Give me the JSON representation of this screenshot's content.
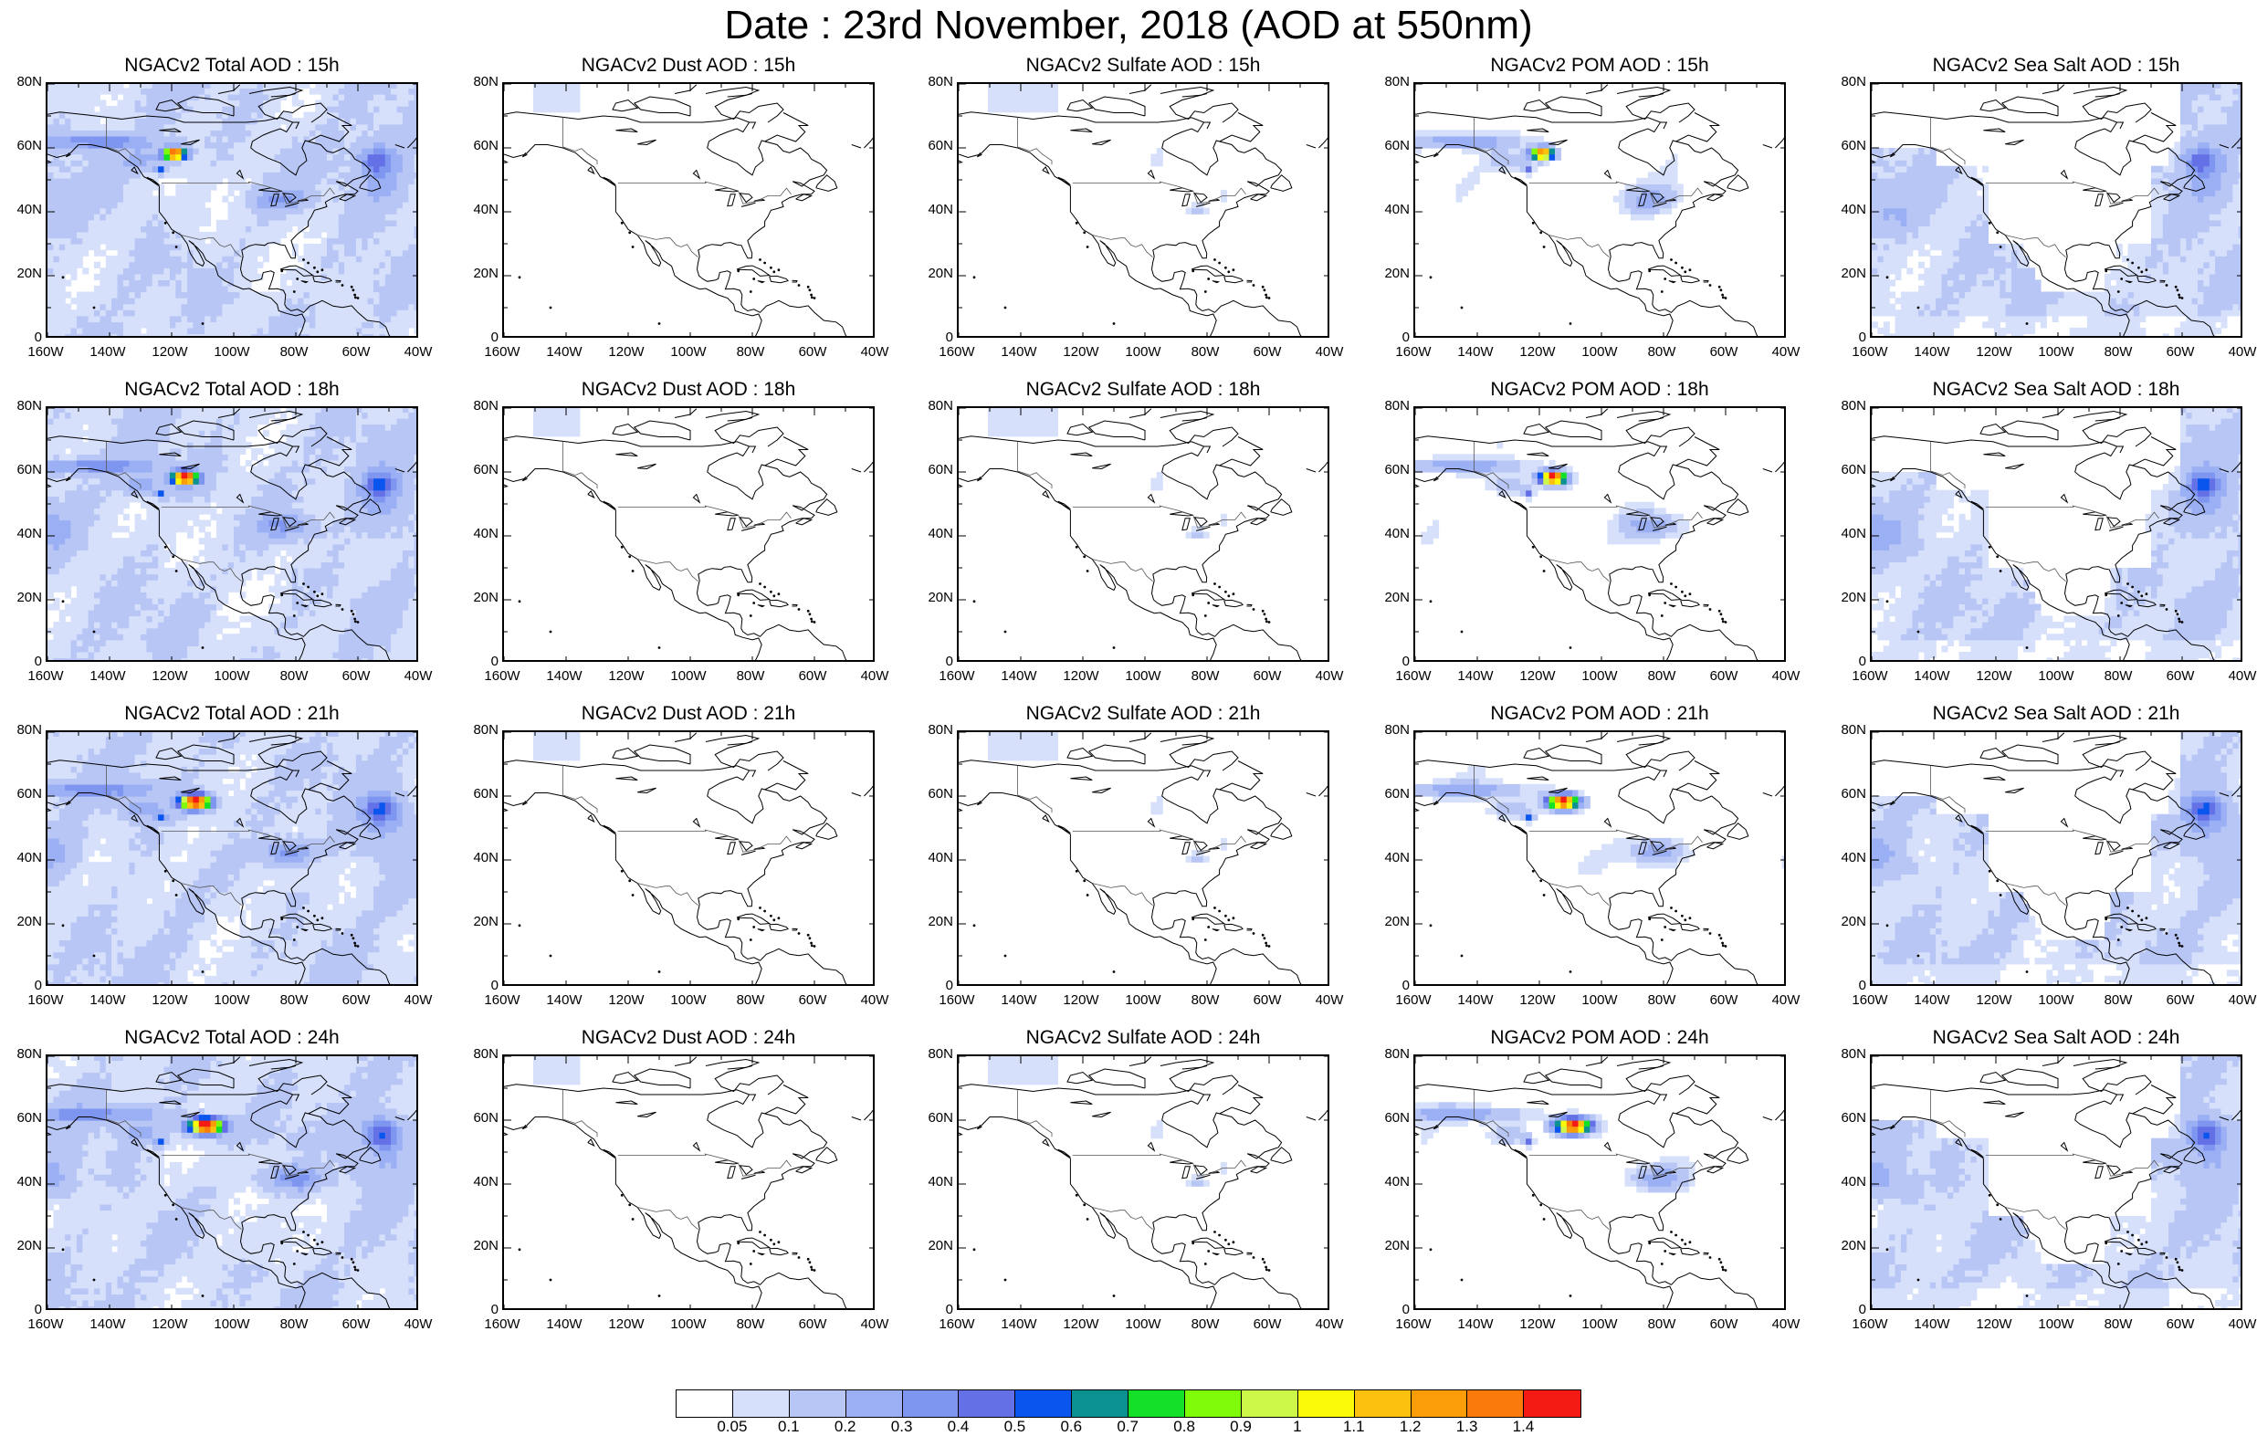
{
  "figure": {
    "title": "Date : 23rd November, 2018 (AOD at 550nm)"
  },
  "axes": {
    "lat_ticks": [
      "80N",
      "60N",
      "40N",
      "20N",
      "0"
    ],
    "lon_ticks": [
      "160W",
      "140W",
      "120W",
      "100W",
      "80W",
      "60W",
      "40W"
    ],
    "lat_range": [
      0,
      80
    ],
    "lon_range": [
      -160,
      -40
    ]
  },
  "panels": [
    [
      {
        "title": "NGACv2 Total AOD : 15h",
        "species": "total",
        "hour": 15
      },
      {
        "title": "NGACv2 Dust AOD : 15h",
        "species": "dust",
        "hour": 15
      },
      {
        "title": "NGACv2 Sulfate AOD : 15h",
        "species": "sulfate",
        "hour": 15
      },
      {
        "title": "NGACv2 POM AOD : 15h",
        "species": "pom",
        "hour": 15
      },
      {
        "title": "NGACv2 Sea Salt AOD : 15h",
        "species": "seasalt",
        "hour": 15
      }
    ],
    [
      {
        "title": "NGACv2 Total AOD : 18h",
        "species": "total",
        "hour": 18
      },
      {
        "title": "NGACv2 Dust AOD : 18h",
        "species": "dust",
        "hour": 18
      },
      {
        "title": "NGACv2 Sulfate AOD : 18h",
        "species": "sulfate",
        "hour": 18
      },
      {
        "title": "NGACv2 POM AOD : 18h",
        "species": "pom",
        "hour": 18
      },
      {
        "title": "NGACv2 Sea Salt AOD : 18h",
        "species": "seasalt",
        "hour": 18
      }
    ],
    [
      {
        "title": "NGACv2 Total AOD : 21h",
        "species": "total",
        "hour": 21
      },
      {
        "title": "NGACv2 Dust AOD : 21h",
        "species": "dust",
        "hour": 21
      },
      {
        "title": "NGACv2 Sulfate AOD : 21h",
        "species": "sulfate",
        "hour": 21
      },
      {
        "title": "NGACv2 POM AOD : 21h",
        "species": "pom",
        "hour": 21
      },
      {
        "title": "NGACv2 Sea Salt AOD : 21h",
        "species": "seasalt",
        "hour": 21
      }
    ],
    [
      {
        "title": "NGACv2 Total AOD : 24h",
        "species": "total",
        "hour": 24
      },
      {
        "title": "NGACv2 Dust AOD : 24h",
        "species": "dust",
        "hour": 24
      },
      {
        "title": "NGACv2 Sulfate AOD : 24h",
        "species": "sulfate",
        "hour": 24
      },
      {
        "title": "NGACv2 POM AOD : 24h",
        "species": "pom",
        "hour": 24
      },
      {
        "title": "NGACv2 Sea Salt  AOD : 24h",
        "species": "seasalt",
        "hour": 24
      }
    ]
  ],
  "colorbar": {
    "labels": [
      "0.05",
      "0.1",
      "0.2",
      "0.3",
      "0.4",
      "0.5",
      "0.6",
      "0.7",
      "0.8",
      "0.9",
      "1",
      "1.1",
      "1.2",
      "1.3",
      "1.4"
    ],
    "colors": [
      "#ffffff",
      "#d6e0fb",
      "#b8c6f6",
      "#9bb0f4",
      "#7f96f0",
      "#6470e6",
      "#0a55ee",
      "#0a9190",
      "#13e026",
      "#7ffa09",
      "#cdf84a",
      "#f9f908",
      "#fbc10e",
      "#fb9d09",
      "#fa7a0a",
      "#f41b14"
    ]
  }
}
